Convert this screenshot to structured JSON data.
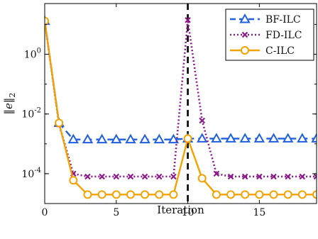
{
  "chart_data": {
    "type": "line",
    "xlabel": "Iteration",
    "ylabel": "||e||_2",
    "xlim": [
      0,
      19
    ],
    "ylim": [
      1e-05,
      50
    ],
    "yscale": "log",
    "xticks": [
      "0",
      "5",
      "10",
      "15"
    ],
    "xtick_values": [
      0,
      5,
      10,
      15
    ],
    "yticks": [
      {
        "base": "10",
        "exp": "0",
        "value": 1
      },
      {
        "base": "10",
        "exp": "-2",
        "value": 0.01
      },
      {
        "base": "10",
        "exp": "-4",
        "value": 0.0001
      }
    ],
    "grid": false,
    "legend_position": "top-right",
    "x": [
      0,
      1,
      2,
      3,
      4,
      5,
      6,
      7,
      8,
      9,
      10,
      11,
      12,
      13,
      14,
      15,
      16,
      17,
      18,
      19
    ],
    "series": [
      {
        "name": "BF-ILC",
        "color": "#1f5fe0",
        "dash": "10,6",
        "marker": "triangle",
        "values": [
          13,
          0.005,
          0.0014,
          0.0014,
          0.0014,
          0.0014,
          0.0014,
          0.0014,
          0.0014,
          0.0014,
          0.0015,
          0.0015,
          0.0015,
          0.0015,
          0.0015,
          0.0015,
          0.0015,
          0.0015,
          0.0015,
          0.0015
        ]
      },
      {
        "name": "FD-ILC",
        "color": "#8b1a8b",
        "dash": "2,3",
        "marker": "x",
        "values": [
          13,
          0.0045,
          0.0001,
          8e-05,
          8e-05,
          8e-05,
          8e-05,
          8e-05,
          8e-05,
          8e-05,
          14,
          0.006,
          0.0001,
          8e-05,
          8e-05,
          8e-05,
          8e-05,
          8e-05,
          8e-05,
          8e-05
        ]
      },
      {
        "name": "C-ILC",
        "color": "#f5a200",
        "dash": "",
        "marker": "circle",
        "values": [
          13,
          0.005,
          6e-05,
          2e-05,
          2e-05,
          2e-05,
          2e-05,
          2e-05,
          2e-05,
          2e-05,
          0.0015,
          7e-05,
          2e-05,
          2e-05,
          2e-05,
          2e-05,
          2e-05,
          2e-05,
          2e-05,
          2e-05
        ]
      }
    ],
    "vline": {
      "x": 10,
      "color": "#000000",
      "dash": "9,6"
    }
  }
}
